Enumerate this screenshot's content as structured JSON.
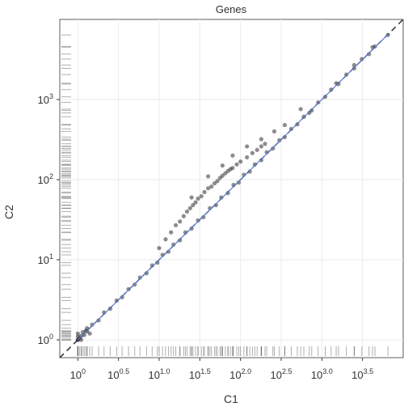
{
  "chart_data": {
    "type": "scatter",
    "title": "Genes",
    "xlabel": "C1",
    "ylabel": "C2",
    "x_scale": "log10",
    "y_scale": "log10",
    "xlim": [
      0.6,
      10000
    ],
    "ylim": [
      0.6,
      10000
    ],
    "grid": true,
    "legend": "none",
    "x_ticks": [
      {
        "base": "10",
        "exp": "0",
        "value": 1
      },
      {
        "base": "10",
        "exp": "0.5",
        "value": 3.162
      },
      {
        "base": "10",
        "exp": "1.0",
        "value": 10
      },
      {
        "base": "10",
        "exp": "1.5",
        "value": 31.62
      },
      {
        "base": "10",
        "exp": "2.0",
        "value": 100
      },
      {
        "base": "10",
        "exp": "2.5",
        "value": 316.2
      },
      {
        "base": "10",
        "exp": "3.0",
        "value": 1000
      },
      {
        "base": "10",
        "exp": "3.5",
        "value": 3162
      }
    ],
    "y_ticks": [
      {
        "base": "10",
        "exp": "0",
        "value": 1
      },
      {
        "base": "10",
        "exp": "1",
        "value": 10
      },
      {
        "base": "10",
        "exp": "2",
        "value": 100
      },
      {
        "base": "10",
        "exp": "3",
        "value": 1000
      }
    ],
    "diagonal": {
      "style": "dashed",
      "color": "#222222"
    },
    "fit_line": {
      "color": "#5b7bd5"
    },
    "point_color": "#1a1a1a",
    "series": [
      {
        "x": [
          1.0,
          1.1,
          1.3,
          1.5,
          1.8,
          2.1,
          2.5,
          3.0,
          3.5,
          4.2,
          5.0,
          5.8,
          7.0,
          8.2,
          9.5,
          11,
          13,
          15,
          18,
          21,
          25,
          30,
          35,
          42,
          50,
          58,
          70,
          82,
          95,
          110,
          130,
          150,
          180,
          210,
          250,
          300,
          350,
          420,
          500,
          600,
          750,
          900,
          1100,
          1300,
          1600,
          2000,
          2500,
          3100,
          3800,
          4500,
          6500
        ],
        "y": [
          1.0,
          1.12,
          1.28,
          1.55,
          1.75,
          2.2,
          2.45,
          3.1,
          3.4,
          4.3,
          4.9,
          6.0,
          6.8,
          8.5,
          9.2,
          11.5,
          12.6,
          15.5,
          17.5,
          22,
          24.5,
          31,
          34,
          44,
          48,
          60,
          68,
          86,
          92,
          115,
          126,
          155,
          175,
          220,
          245,
          310,
          340,
          430,
          490,
          610,
          730,
          920,
          1080,
          1330,
          1560,
          2050,
          2450,
          3200,
          3700,
          4600,
          6400
        ]
      },
      {
        "x": [
          10,
          12,
          14,
          16,
          18,
          20,
          22,
          24,
          26,
          28,
          30,
          33,
          36,
          40,
          44,
          48,
          52,
          56,
          60,
          65,
          70,
          75,
          80,
          90,
          100,
          120,
          140,
          160,
          180,
          200
        ],
        "y": [
          14,
          18,
          22,
          27,
          30,
          35,
          40,
          44,
          48,
          52,
          58,
          62,
          70,
          78,
          82,
          90,
          96,
          105,
          112,
          120,
          128,
          135,
          140,
          155,
          168,
          190,
          215,
          235,
          260,
          280
        ]
      },
      {
        "x": [
          1.0,
          1.0,
          1.0,
          1.05,
          1.1,
          1.15,
          1.2,
          1.25,
          1.3,
          1.4
        ],
        "y": [
          1.0,
          1.1,
          1.2,
          1.05,
          1.0,
          1.25,
          1.15,
          1.3,
          1.4,
          1.2
        ]
      },
      {
        "x": [
          25,
          40,
          60,
          80,
          120,
          180,
          260,
          350,
          550,
          700,
          1500,
          2500,
          4200
        ],
        "y": [
          60,
          110,
          150,
          200,
          260,
          320,
          400,
          480,
          760,
          680,
          1600,
          2700,
          4500
        ]
      }
    ]
  }
}
